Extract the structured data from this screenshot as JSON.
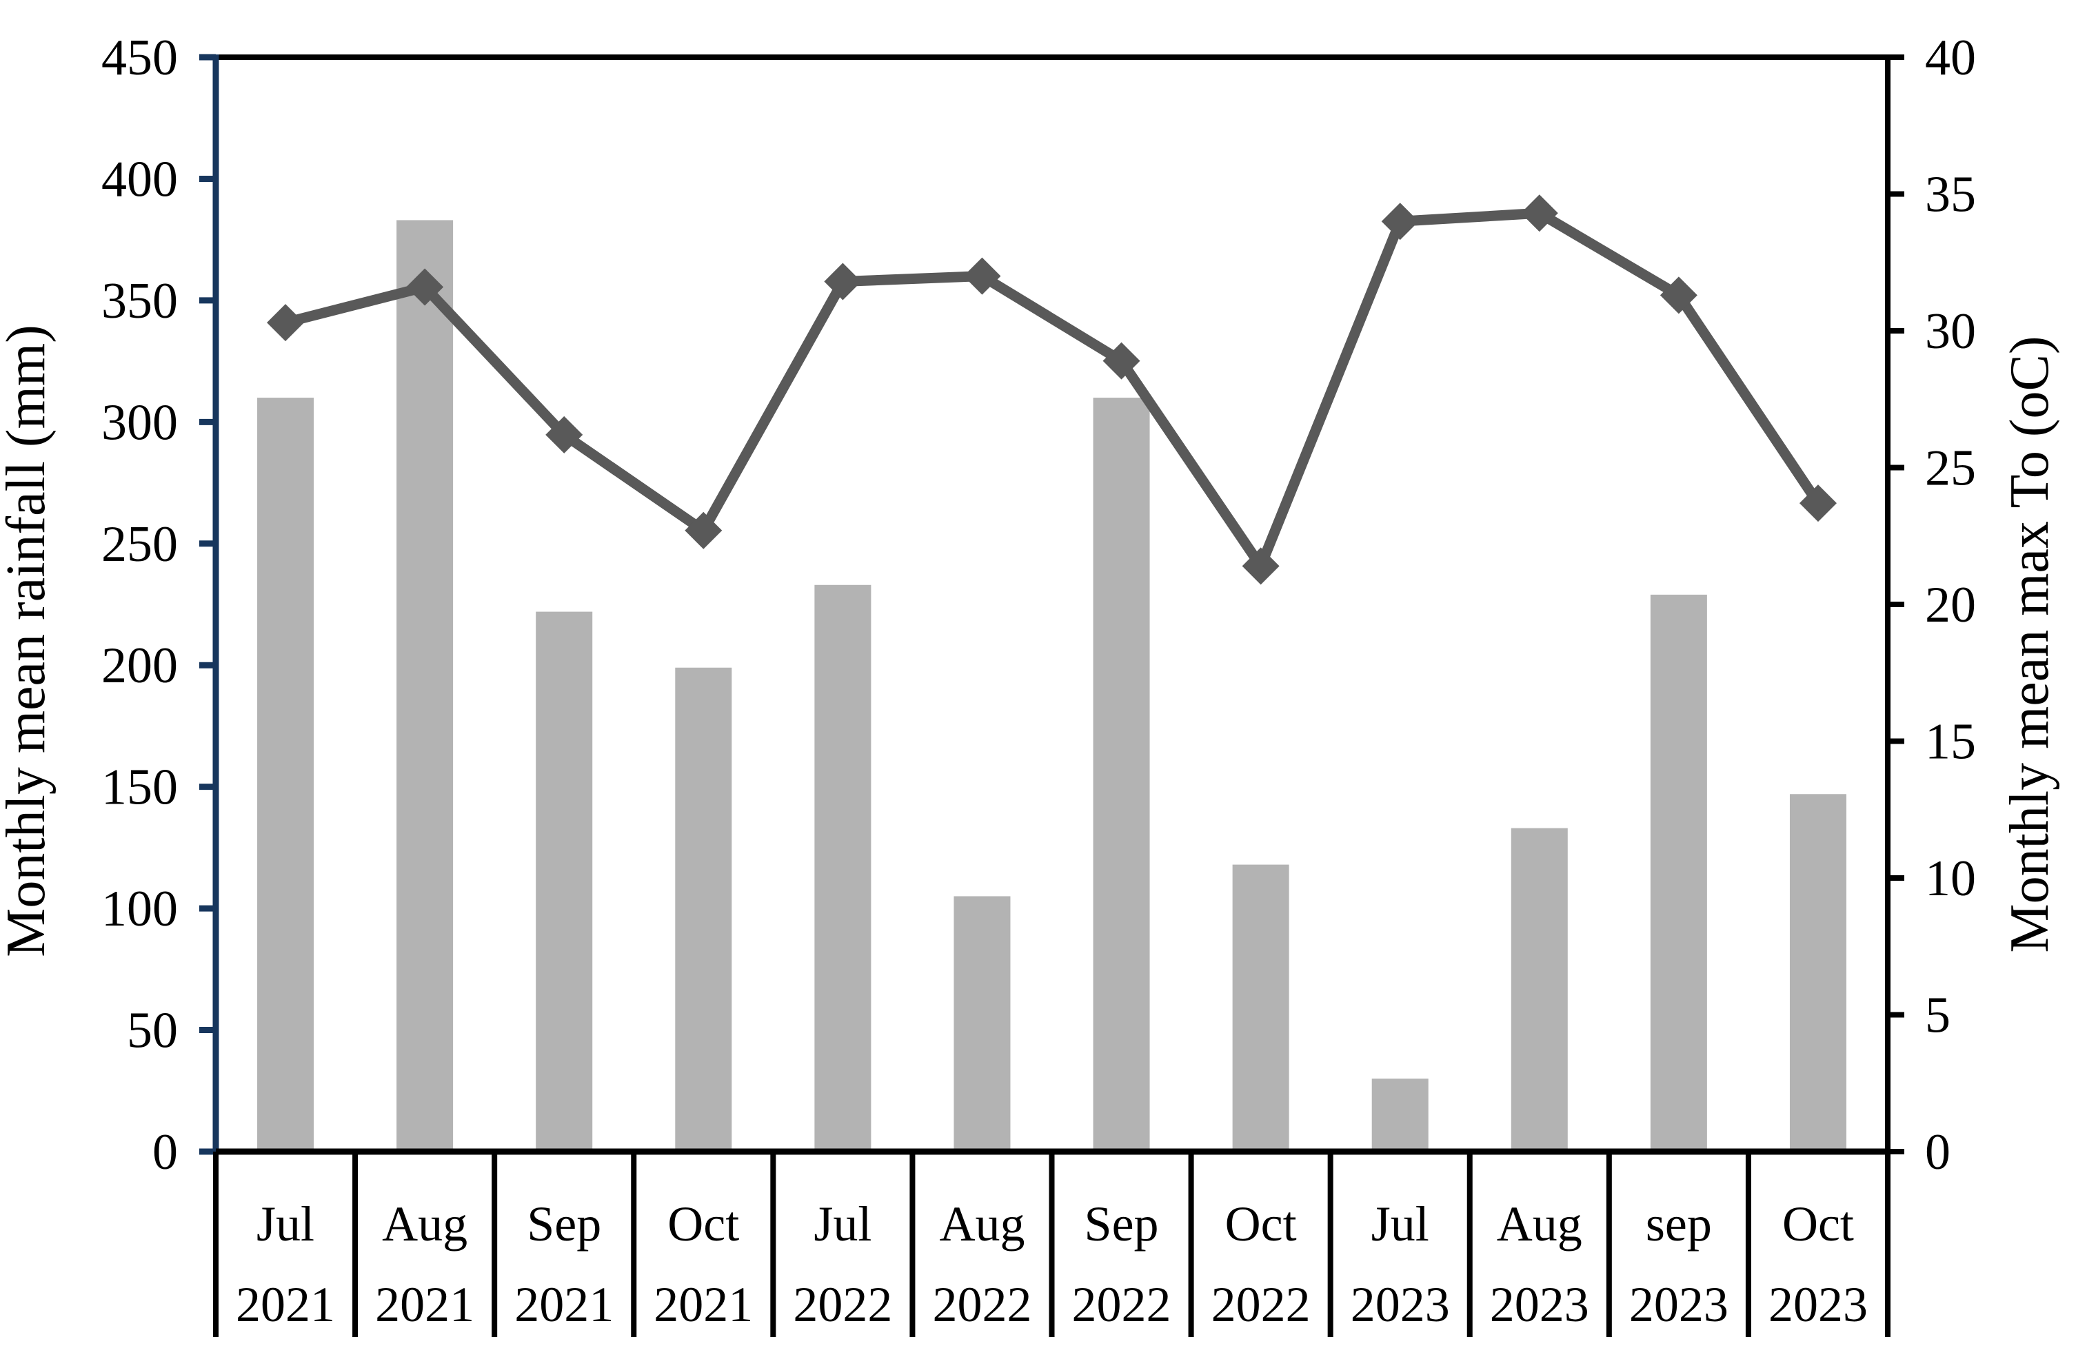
{
  "chart_data": {
    "type": "bar+line",
    "title": "",
    "categories": [
      {
        "month": "Jul",
        "year": "2021"
      },
      {
        "month": "Aug",
        "year": "2021"
      },
      {
        "month": "Sep",
        "year": "2021"
      },
      {
        "month": "Oct",
        "year": "2021"
      },
      {
        "month": "Jul",
        "year": "2022"
      },
      {
        "month": "Aug",
        "year": "2022"
      },
      {
        "month": "Sep",
        "year": "2022"
      },
      {
        "month": "Oct",
        "year": "2022"
      },
      {
        "month": "Jul",
        "year": "2023"
      },
      {
        "month": "Aug",
        "year": "2023"
      },
      {
        "month": "sep",
        "year": "2023"
      },
      {
        "month": "Oct",
        "year": "2023"
      }
    ],
    "series": [
      {
        "name": "Monthly mean rainfall (mm)",
        "type": "bar",
        "axis": "left",
        "values": [
          310,
          383,
          222,
          199,
          233,
          105,
          310,
          118,
          30,
          133,
          229,
          147
        ]
      },
      {
        "name": "Monthly mean max To (oC)",
        "type": "line",
        "axis": "right",
        "values": [
          30.3,
          31.6,
          26.2,
          22.7,
          31.8,
          32.0,
          28.9,
          21.4,
          34.0,
          34.3,
          31.3,
          23.7
        ]
      }
    ],
    "left_axis": {
      "title": "Monthly mean rainfall (mm)",
      "min": 0,
      "max": 450,
      "step": 50,
      "tick_labels": [
        "0",
        "50",
        "100",
        "150",
        "200",
        "250",
        "300",
        "350",
        "400",
        "450"
      ]
    },
    "right_axis": {
      "title": "Monthly mean max To (oC)",
      "min": 0,
      "max": 40,
      "step": 5,
      "tick_labels": [
        "0",
        "5",
        "10",
        "15",
        "20",
        "25",
        "30",
        "35",
        "40"
      ]
    },
    "grid": false,
    "legend": false
  },
  "colors": {
    "background": "#FFFFFF",
    "bar": "#B3B3B3",
    "line": "#595959",
    "marker": "#595959",
    "left_axis_line": "#17365D",
    "right_axis_line": "#000000",
    "plot_border": "#000000",
    "table_border": "#000000",
    "text": "#000000"
  }
}
